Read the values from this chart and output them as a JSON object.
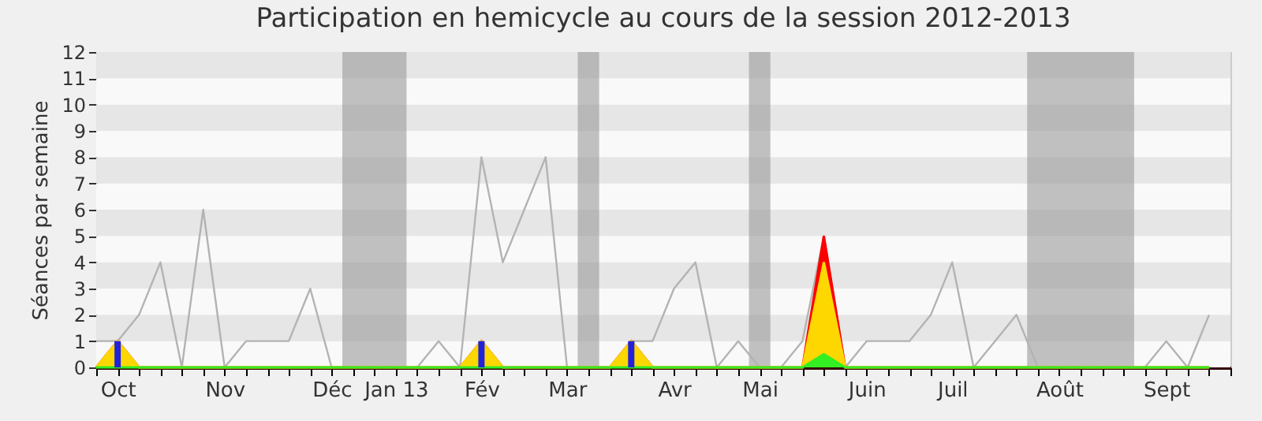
{
  "chart_data": {
    "type": "area",
    "title": "Participation en hemicycle au cours de la session 2012-2013",
    "ylabel": "Séances par semaine",
    "x": [
      "2012-10-01",
      "2012-10-08",
      "2012-10-15",
      "2012-10-22",
      "2012-10-29",
      "2012-11-05",
      "2012-11-12",
      "2012-11-19",
      "2012-11-26",
      "2012-12-03",
      "2012-12-10",
      "2012-12-17",
      "2012-12-24",
      "2012-12-31",
      "2013-01-07",
      "2013-01-14",
      "2013-01-21",
      "2013-01-28",
      "2013-02-04",
      "2013-02-11",
      "2013-02-18",
      "2013-02-25",
      "2013-03-04",
      "2013-03-11",
      "2013-03-18",
      "2013-03-25",
      "2013-04-01",
      "2013-04-08",
      "2013-04-15",
      "2013-04-22",
      "2013-04-29",
      "2013-05-06",
      "2013-05-13",
      "2013-05-20",
      "2013-05-27",
      "2013-06-03",
      "2013-06-10",
      "2013-06-17",
      "2013-06-24",
      "2013-07-01",
      "2013-07-08",
      "2013-07-15",
      "2013-07-22",
      "2013-07-29",
      "2013-08-05",
      "2013-08-12",
      "2013-08-19",
      "2013-08-26",
      "2013-09-02",
      "2013-09-09",
      "2013-09-16",
      "2013-09-23",
      "2013-09-30"
    ],
    "series": [
      {
        "type": "line",
        "color": "#b3b3b3",
        "values": [
          1,
          1,
          2,
          4,
          0,
          6,
          0,
          1,
          1,
          1,
          3,
          0,
          null,
          null,
          null,
          0,
          1,
          0,
          8,
          4,
          6,
          8,
          0,
          null,
          0,
          1,
          1,
          3,
          4,
          0,
          1,
          0,
          0,
          1,
          5,
          0,
          1,
          1,
          1,
          2,
          4,
          0,
          1,
          2,
          0,
          null,
          null,
          null,
          null,
          0,
          1,
          0,
          2
        ]
      },
      {
        "color": "#ff0000",
        "values": [
          0,
          1,
          0,
          0,
          0,
          0,
          0,
          0,
          0,
          0,
          0,
          0,
          0,
          0,
          0,
          0,
          0,
          0,
          1,
          0,
          0,
          0,
          0,
          0,
          0,
          1,
          0,
          0,
          0,
          0,
          0,
          0,
          0,
          0,
          5,
          0,
          0,
          0,
          0,
          0,
          0,
          0,
          0,
          0,
          0,
          0,
          0,
          0,
          0,
          0,
          0,
          0,
          0
        ]
      },
      {
        "color": "#ffd700",
        "values": [
          0,
          1,
          0,
          0,
          0,
          0,
          0,
          0,
          0,
          0,
          0,
          0,
          0,
          0,
          0,
          0,
          0,
          0,
          1,
          0,
          0,
          0,
          0,
          0,
          0,
          1,
          0,
          0,
          0,
          0,
          0,
          0,
          0,
          0,
          4,
          0,
          0,
          0,
          0,
          0,
          0,
          0,
          0,
          0,
          0,
          0,
          0,
          0,
          0,
          0,
          0,
          0,
          0
        ]
      },
      {
        "color": "#33ee22",
        "values": [
          0,
          0,
          0,
          0,
          0,
          0,
          0,
          0,
          0,
          0,
          0,
          0,
          0,
          0,
          0,
          0,
          0,
          0,
          0,
          0,
          0,
          0,
          0,
          0,
          0,
          0,
          0,
          0,
          0,
          0,
          0,
          0,
          0,
          0,
          0.5,
          0,
          0,
          0,
          0,
          0,
          0,
          0,
          0,
          0,
          0,
          0,
          0,
          0,
          0,
          0,
          0,
          0,
          0
        ]
      },
      {
        "type": "bar",
        "color": "#2222dd",
        "values": [
          null,
          1,
          null,
          null,
          null,
          null,
          null,
          null,
          null,
          null,
          null,
          null,
          null,
          null,
          null,
          null,
          null,
          null,
          1,
          null,
          null,
          null,
          null,
          null,
          null,
          1,
          null,
          null,
          null,
          null,
          null,
          null,
          null,
          null,
          null,
          null,
          null,
          null,
          null,
          null,
          null,
          null,
          null,
          null,
          null,
          null,
          null,
          null,
          null,
          null,
          null,
          null,
          null
        ]
      }
    ],
    "bands": [
      {
        "axis": "x",
        "from": "2012-12-20T12:00",
        "to": "2013-01-10T12:00",
        "color": "#999999"
      },
      {
        "axis": "x",
        "from": "2013-03-07T12:00",
        "to": "2013-03-14T12:00",
        "color": "#999999"
      },
      {
        "axis": "x",
        "from": "2013-05-02T12:00",
        "to": "2013-05-09T12:00",
        "color": "#999999"
      },
      {
        "axis": "x",
        "from": "2013-08-01T12:00",
        "to": "2013-09-05T12:00",
        "color": "#999999"
      }
    ],
    "xlim": [
      "2012-10-01",
      "2013-10-07"
    ],
    "xticks": [
      {
        "value": "2012-10-01",
        "label": null
      },
      {
        "value": "2012-10-08",
        "label": "Oct"
      },
      {
        "value": "2012-10-15",
        "label": null
      },
      {
        "value": "2012-10-22",
        "label": null
      },
      {
        "value": "2012-10-29",
        "label": null
      },
      {
        "value": "2012-11-05",
        "label": null
      },
      {
        "value": "2012-11-12",
        "label": "Nov"
      },
      {
        "value": "2012-11-19",
        "label": null
      },
      {
        "value": "2012-11-26",
        "label": null
      },
      {
        "value": "2012-12-03",
        "label": null
      },
      {
        "value": "2012-12-10",
        "label": null
      },
      {
        "value": "2012-12-17",
        "label": "Déc"
      },
      {
        "value": "2012-12-24",
        "label": null
      },
      {
        "value": "2012-12-31",
        "label": null
      },
      {
        "value": "2013-01-07",
        "label": "Jan 13"
      },
      {
        "value": "2013-01-14",
        "label": null
      },
      {
        "value": "2013-01-21",
        "label": null
      },
      {
        "value": "2013-01-28",
        "label": null
      },
      {
        "value": "2013-02-04",
        "label": "Fév"
      },
      {
        "value": "2013-02-11",
        "label": null
      },
      {
        "value": "2013-02-18",
        "label": null
      },
      {
        "value": "2013-02-25",
        "label": null
      },
      {
        "value": "2013-03-04",
        "label": "Mar"
      },
      {
        "value": "2013-03-11",
        "label": null
      },
      {
        "value": "2013-03-18",
        "label": null
      },
      {
        "value": "2013-03-25",
        "label": null
      },
      {
        "value": "2013-04-01",
        "label": null
      },
      {
        "value": "2013-04-08",
        "label": "Avr"
      },
      {
        "value": "2013-04-15",
        "label": null
      },
      {
        "value": "2013-04-22",
        "label": null
      },
      {
        "value": "2013-04-29",
        "label": null
      },
      {
        "value": "2013-05-06",
        "label": "Mai"
      },
      {
        "value": "2013-05-13",
        "label": null
      },
      {
        "value": "2013-05-20",
        "label": null
      },
      {
        "value": "2013-05-27",
        "label": null
      },
      {
        "value": "2013-06-03",
        "label": null
      },
      {
        "value": "2013-06-10",
        "label": "Juin"
      },
      {
        "value": "2013-06-17",
        "label": null
      },
      {
        "value": "2013-06-24",
        "label": null
      },
      {
        "value": "2013-07-01",
        "label": null
      },
      {
        "value": "2013-07-08",
        "label": "Juil"
      },
      {
        "value": "2013-07-15",
        "label": null
      },
      {
        "value": "2013-07-22",
        "label": null
      },
      {
        "value": "2013-07-29",
        "label": null
      },
      {
        "value": "2013-08-05",
        "label": null
      },
      {
        "value": "2013-08-12",
        "label": "Août"
      },
      {
        "value": "2013-08-19",
        "label": null
      },
      {
        "value": "2013-08-26",
        "label": null
      },
      {
        "value": "2013-09-02",
        "label": null
      },
      {
        "value": "2013-09-09",
        "label": null
      },
      {
        "value": "2013-09-16",
        "label": "Sept"
      },
      {
        "value": "2013-09-23",
        "label": null
      },
      {
        "value": "2013-09-30",
        "label": null
      },
      {
        "value": "2013-10-07",
        "label": null
      }
    ],
    "ylim": [
      0,
      12
    ],
    "yticks": [
      0,
      1,
      2,
      3,
      4,
      5,
      6,
      7,
      8,
      9,
      10,
      11,
      12
    ]
  }
}
